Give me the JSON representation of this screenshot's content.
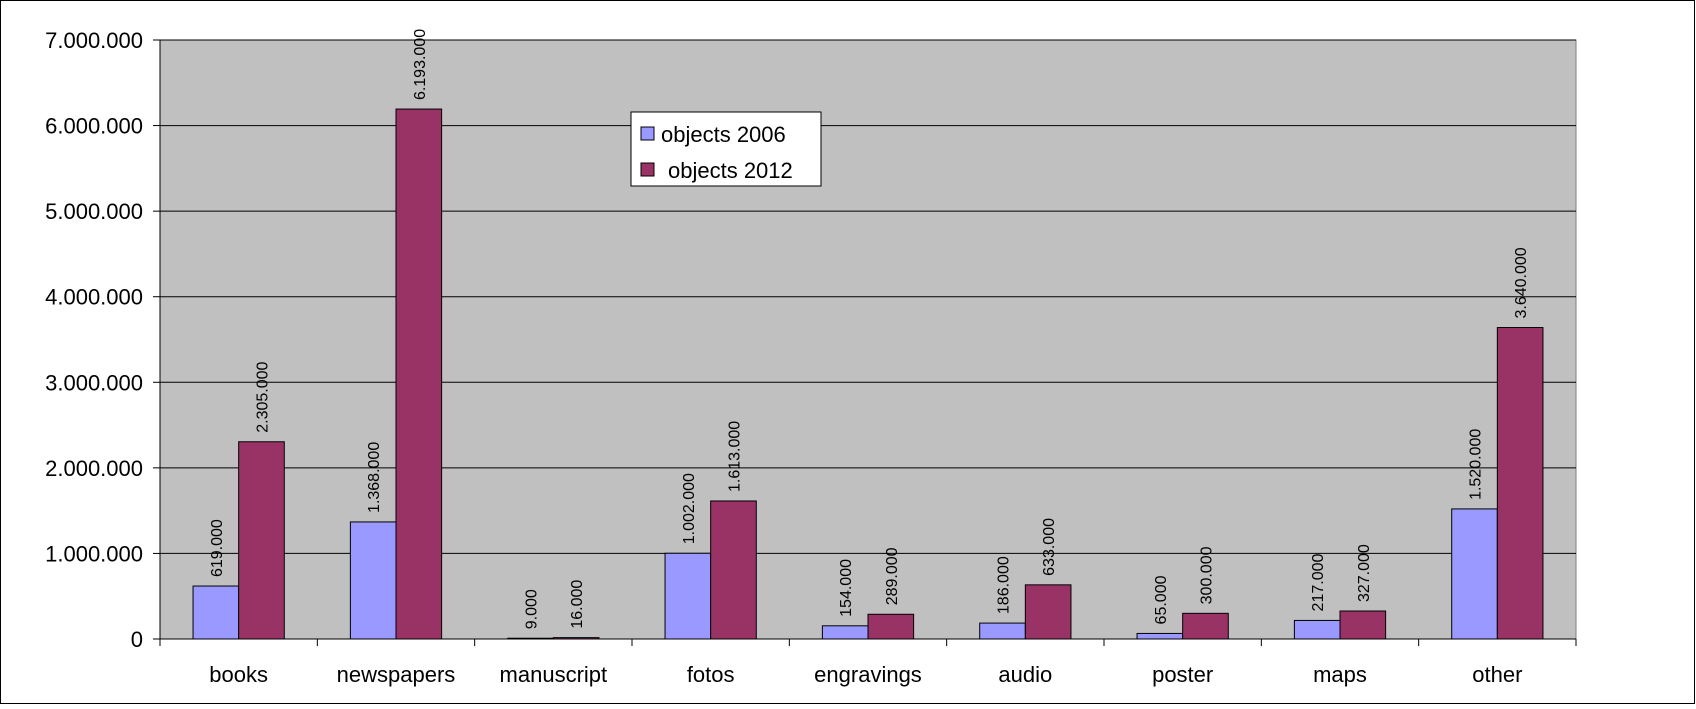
{
  "chart_data": {
    "type": "bar",
    "title": "",
    "xlabel": "",
    "ylabel": "",
    "categories": [
      "books",
      "newspapers",
      "manuscript",
      "fotos",
      "engravings",
      "audio",
      "poster",
      "maps",
      "other"
    ],
    "series": [
      {
        "name": "objects 2006",
        "color": "#9999ff",
        "values": [
          619000,
          1368000,
          9000,
          1002000,
          154000,
          186000,
          65000,
          217000,
          1520000
        ],
        "labels": [
          "619.000",
          "1.368.000",
          "9.000",
          "1.002.000",
          "154.000",
          "186.000",
          "65.000",
          "217.000",
          "1.520.000"
        ]
      },
      {
        "name": "objects 2012",
        "color": "#993366",
        "values": [
          2305000,
          6193000,
          16000,
          1613000,
          289000,
          633000,
          300000,
          327000,
          3640000
        ],
        "labels": [
          "2.305.000",
          "6.193.000",
          "16.000",
          "1.613.000",
          "289.000",
          "633.000",
          "300.000",
          "327.000",
          "3.640.000"
        ]
      }
    ],
    "ylim": [
      0,
      7000000
    ],
    "yticks": [
      0,
      1000000,
      2000000,
      3000000,
      4000000,
      5000000,
      6000000,
      7000000
    ],
    "ytick_labels": [
      "0",
      "1.000.000",
      "2.000.000",
      "3.000.000",
      "4.000.000",
      "5.000.000",
      "6.000.000",
      "7.000.000"
    ],
    "grid": true,
    "plot_background": "#c0c0c0",
    "legend_position": "top-center"
  }
}
